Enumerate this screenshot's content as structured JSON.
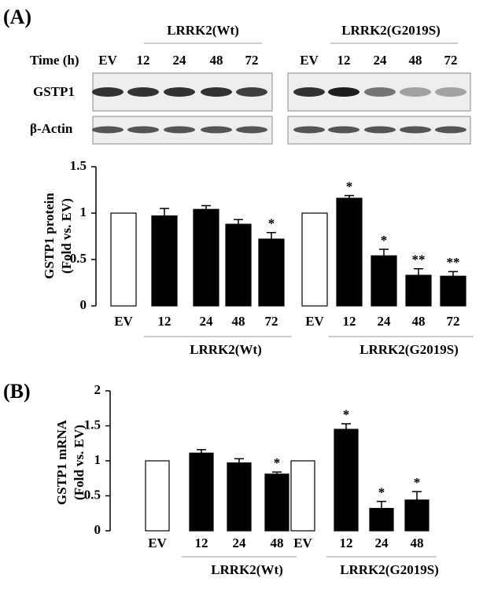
{
  "panel_labels": [
    "(A)",
    "(B)"
  ],
  "blot": {
    "time_label": "Time (h)",
    "groups": [
      "LRRK2(Wt)",
      "LRRK2(G2019S)"
    ],
    "lanes": [
      [
        "EV",
        "12",
        "24",
        "48",
        "72"
      ],
      [
        "EV",
        "12",
        "24",
        "48",
        "72"
      ]
    ],
    "rows": [
      "GSTP1",
      "β-Actin"
    ]
  },
  "chart_data": [
    {
      "type": "bar",
      "y_label": [
        "GSTP1 protein",
        "(Fold vs. EV)"
      ],
      "categories": [
        "EV",
        "12",
        "24",
        "48",
        "72",
        "EV",
        "12",
        "24",
        "48",
        "72"
      ],
      "values": [
        1,
        0.97,
        1.04,
        0.88,
        0.72,
        1,
        1.16,
        0.54,
        0.33,
        0.32
      ],
      "errors": [
        null,
        0.08,
        0.04,
        0.05,
        0.07,
        null,
        0.03,
        0.07,
        0.07,
        0.05
      ],
      "annotations": [
        null,
        null,
        null,
        null,
        "*",
        null,
        "*",
        "*",
        "**",
        "**"
      ],
      "colors": [
        "#ffffff",
        "#000000",
        "#000000",
        "#000000",
        "#000000",
        "#ffffff",
        "#000000",
        "#000000",
        "#000000",
        "#000000"
      ],
      "groups": [
        "LRRK2(Wt)",
        "LRRK2(G2019S)"
      ],
      "ylim": [
        0,
        1.5
      ],
      "yticks": [
        0,
        0.5,
        1,
        1.5
      ]
    },
    {
      "type": "bar",
      "y_label": [
        "GSTP1 mRNA",
        "(Fold vs. EV)"
      ],
      "categories": [
        "EV",
        "12",
        "24",
        "48",
        "EV",
        "12",
        "24",
        "48"
      ],
      "values": [
        1,
        1.11,
        0.97,
        0.81,
        1,
        1.45,
        0.32,
        0.44
      ],
      "errors": [
        null,
        0.05,
        0.06,
        0.03,
        null,
        0.08,
        0.1,
        0.12
      ],
      "annotations": [
        null,
        null,
        null,
        "*",
        null,
        "*",
        "*",
        "*"
      ],
      "colors": [
        "#ffffff",
        "#000000",
        "#000000",
        "#000000",
        "#ffffff",
        "#000000",
        "#000000",
        "#000000"
      ],
      "groups": [
        "LRRK2(Wt)",
        "LRRK2(G2019S)"
      ],
      "ylim": [
        0,
        2
      ],
      "yticks": [
        0,
        0.5,
        1,
        1.5,
        2
      ]
    }
  ]
}
